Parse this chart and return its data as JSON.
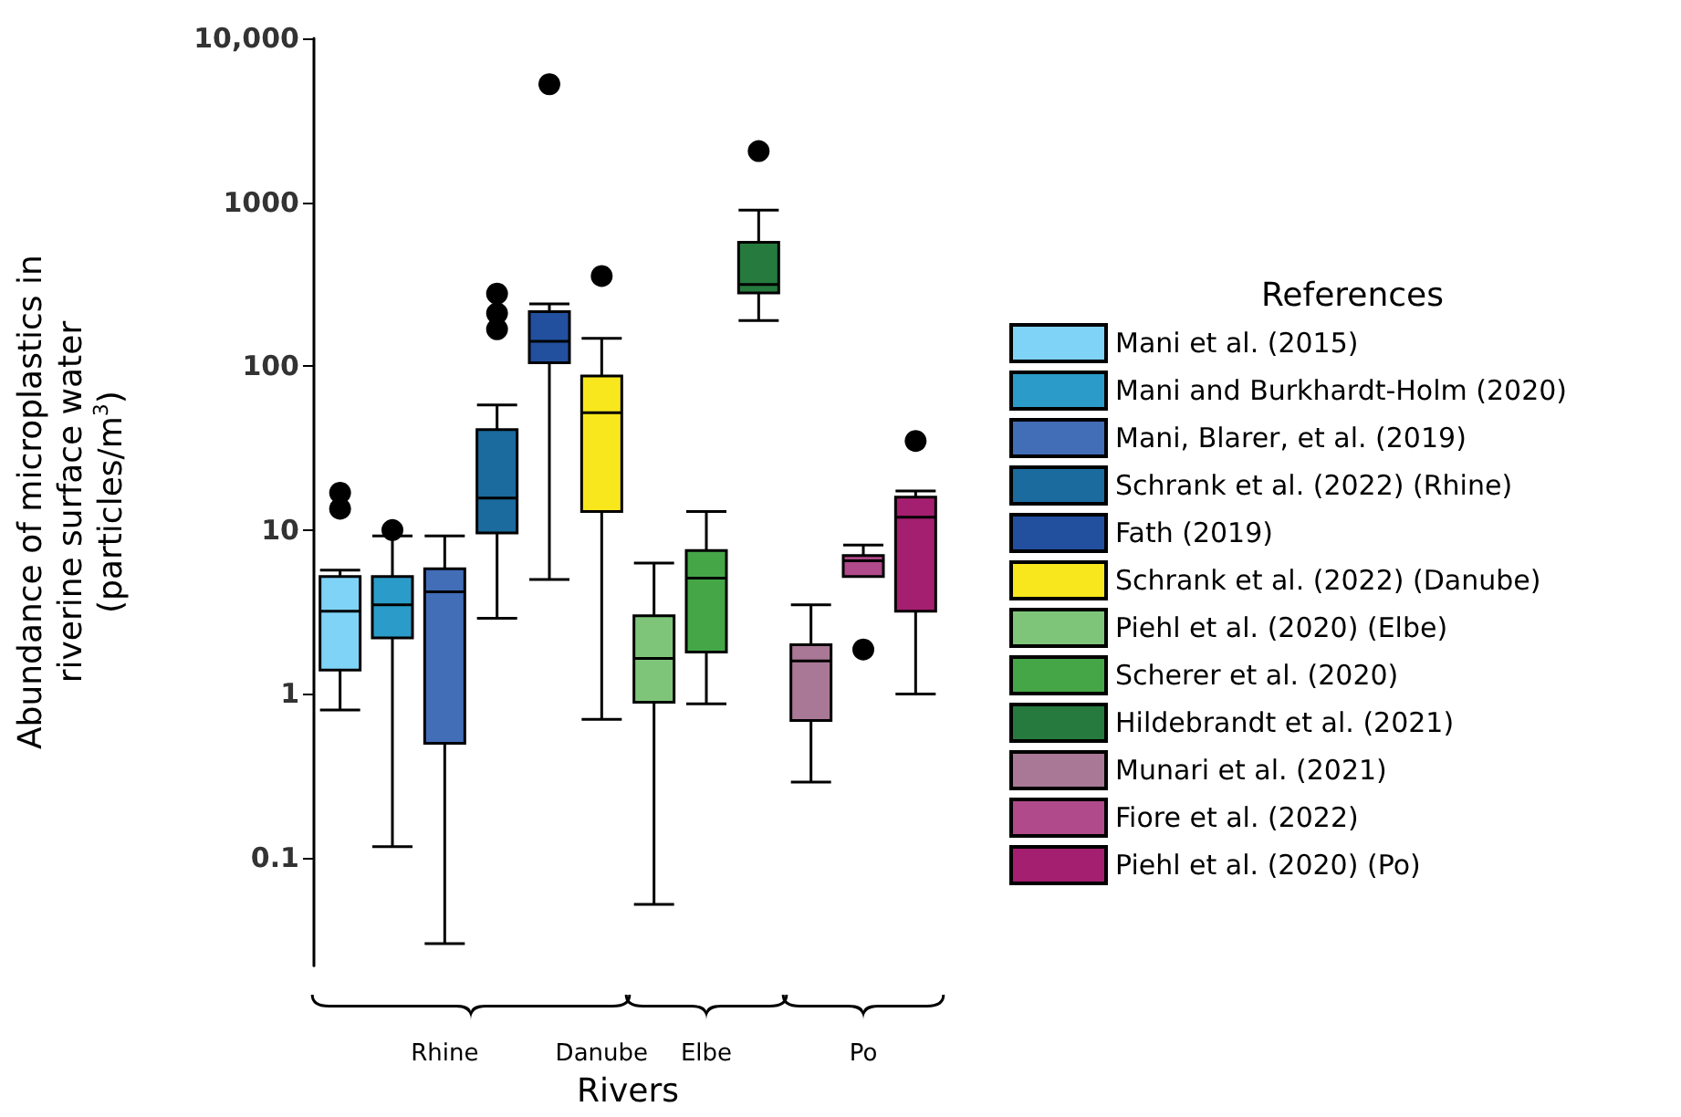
{
  "chart_data": {
    "type": "box",
    "xlabel": "Rivers",
    "ylabel": "Abundance of microplastics in\nriverine surface water\n(particles/m$^{3}$)",
    "legend_title": "References",
    "legend": "right",
    "grid": false,
    "log": "y",
    "categories": [
      null,
      null,
      "Rhine",
      null,
      null,
      "Danube",
      null,
      "Elbe",
      null,
      null,
      "Po",
      null
    ],
    "ylim": [
      0.022,
      10000
    ],
    "yticks": [
      0.1,
      1,
      10,
      100,
      1000,
      {
        "value": 10000,
        "label": "10,000"
      }
    ],
    "series": [
      {
        "name": "Mani et al. (2015)",
        "color": "#7fd3f7",
        "boxes": [
          {
            "low": 0.8,
            "q1": 1.4,
            "median": 3.2,
            "q3": 5.2,
            "high": 5.7,
            "outliers": [
              13.5,
              16.9
            ]
          },
          null,
          null,
          null,
          null,
          null,
          null,
          null,
          null,
          null,
          null,
          null
        ]
      },
      {
        "name": "Mani and Burkhardt-Holm (2020)",
        "color": "#2b9cc9",
        "boxes": [
          null,
          {
            "low": 0.117,
            "q1": 2.2,
            "median": 3.5,
            "q3": 5.2,
            "high": 9.2,
            "outliers": [
              10
            ]
          },
          null,
          null,
          null,
          null,
          null,
          null,
          null,
          null,
          null,
          null
        ]
      },
      {
        "name": "Mani, Blarer, et al. (2019)",
        "color": "#426db7",
        "boxes": [
          null,
          null,
          {
            "low": 0.03,
            "q1": 0.5,
            "median": 4.2,
            "q3": 5.8,
            "high": 9.2
          },
          null,
          null,
          null,
          null,
          null,
          null,
          null,
          null,
          null
        ]
      },
      {
        "name": "Schrank et al. (2022) (Rhine)",
        "color": "#1b6b9e",
        "boxes": [
          null,
          null,
          null,
          {
            "low": 2.9,
            "q1": 9.6,
            "median": 15.7,
            "q3": 41,
            "high": 58,
            "outliers": [
              168,
              210,
              277
            ]
          },
          null,
          null,
          null,
          null,
          null,
          null,
          null,
          null
        ]
      },
      {
        "name": "Fath (2019)",
        "color": "#22509f",
        "boxes": [
          null,
          null,
          null,
          null,
          {
            "low": 5,
            "q1": 105,
            "median": 142,
            "q3": 215,
            "high": 240,
            "outliers": [
              5250
            ]
          },
          null,
          null,
          null,
          null,
          null,
          null,
          null
        ]
      },
      {
        "name": "Schrank et al. (2022) (Danube)",
        "color": "#f8e71c",
        "boxes": [
          null,
          null,
          null,
          null,
          null,
          {
            "low": 0.7,
            "q1": 13,
            "median": 52,
            "q3": 87,
            "high": 148,
            "outliers": [
              355
            ]
          },
          null,
          null,
          null,
          null,
          null,
          null
        ]
      },
      {
        "name": "Piehl et al. (2020) (Elbe)",
        "color": "#7ec57a",
        "boxes": [
          null,
          null,
          null,
          null,
          null,
          null,
          {
            "low": 0.052,
            "q1": 0.89,
            "median": 1.65,
            "q3": 3,
            "high": 6.3
          },
          null,
          null,
          null,
          null,
          null
        ]
      },
      {
        "name": "Scherer et al. (2020)",
        "color": "#45a648",
        "boxes": [
          null,
          null,
          null,
          null,
          null,
          null,
          null,
          {
            "low": 0.87,
            "q1": 1.8,
            "median": 5.1,
            "q3": 7.5,
            "high": 13
          },
          null,
          null,
          null,
          null
        ]
      },
      {
        "name": "Hildebrandt et al. (2021)",
        "color": "#267a3e",
        "boxes": [
          null,
          null,
          null,
          null,
          null,
          null,
          null,
          null,
          {
            "low": 190,
            "q1": 280,
            "median": 315,
            "q3": 570,
            "high": 895,
            "outliers": [
              2050
            ]
          },
          null,
          null,
          null
        ]
      },
      {
        "name": "Munari et al. (2021)",
        "color": "#a97896",
        "boxes": [
          null,
          null,
          null,
          null,
          null,
          null,
          null,
          null,
          null,
          {
            "low": 0.29,
            "q1": 0.69,
            "median": 1.59,
            "q3": 2,
            "high": 3.5
          },
          null,
          null
        ]
      },
      {
        "name": "Fiore et al. (2022)",
        "color": "#b04a8a",
        "boxes": [
          null,
          null,
          null,
          null,
          null,
          null,
          null,
          null,
          null,
          null,
          {
            "low": 5.2,
            "q1": 5.2,
            "median": 6.5,
            "q3": 7,
            "high": 8.1,
            "outliers": [
              1.87
            ]
          },
          null
        ]
      },
      {
        "name": "Piehl et al. (2020) (Po)",
        "color": "#a41f6f",
        "boxes": [
          null,
          null,
          null,
          null,
          null,
          null,
          null,
          null,
          null,
          null,
          null,
          {
            "low": 1,
            "q1": 3.2,
            "median": 12,
            "q3": 15.9,
            "high": 17.3,
            "outliers": [
              35
            ]
          }
        ]
      }
    ]
  }
}
